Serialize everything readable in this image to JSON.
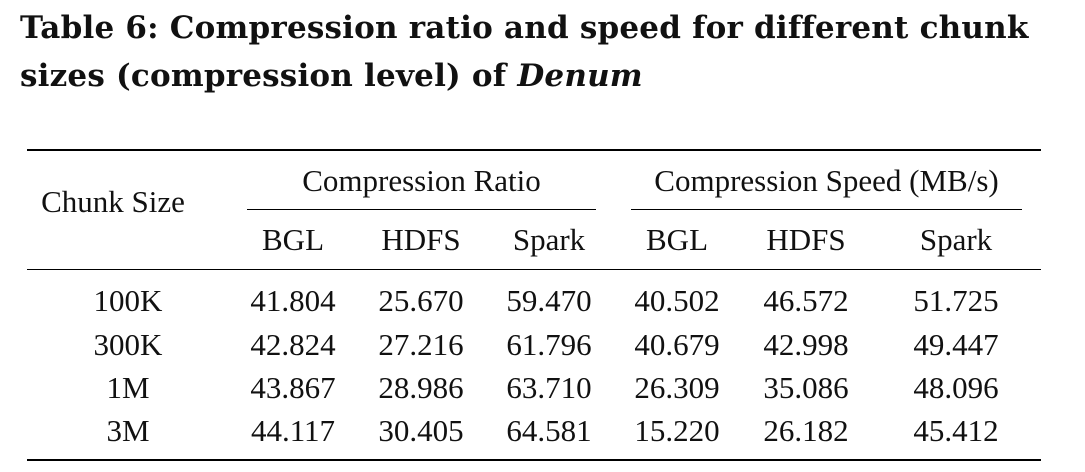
{
  "caption": {
    "label": "Table 6:",
    "text": "Compression ratio and speed for different chunk sizes (compression level) of",
    "system": "Denum"
  },
  "table": {
    "row_header": "Chunk Size",
    "group_headers": [
      "Compression Ratio",
      "Compression Speed (MB/s)"
    ],
    "sub_headers": [
      "BGL",
      "HDFS",
      "Spark",
      "BGL",
      "HDFS",
      "Spark"
    ],
    "rows": [
      {
        "label": "100K",
        "values": [
          "41.804",
          "25.670",
          "59.470",
          "40.502",
          "46.572",
          "51.725"
        ]
      },
      {
        "label": "300K",
        "values": [
          "42.824",
          "27.216",
          "61.796",
          "40.679",
          "42.998",
          "49.447"
        ]
      },
      {
        "label": "1M",
        "values": [
          "43.867",
          "28.986",
          "63.710",
          "26.309",
          "35.086",
          "48.096"
        ]
      },
      {
        "label": "3M",
        "values": [
          "44.117",
          "30.405",
          "64.581",
          "15.220",
          "26.182",
          "45.412"
        ]
      }
    ]
  }
}
